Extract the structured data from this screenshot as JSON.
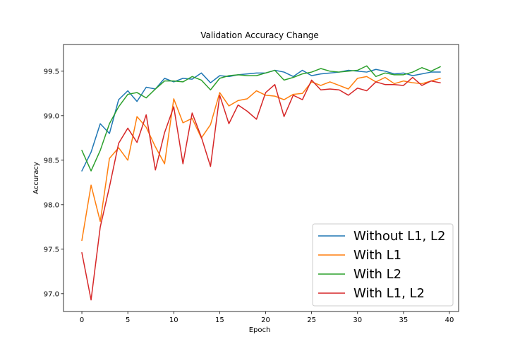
{
  "chart_data": {
    "type": "line",
    "title": "Validation Accuracy Change",
    "xlabel": "Epoch",
    "ylabel": "Accuracy",
    "xlim": [
      -2,
      41
    ],
    "ylim": [
      96.8,
      99.8
    ],
    "xticks": [
      0,
      5,
      10,
      15,
      20,
      25,
      30,
      35,
      40
    ],
    "xtick_labels": [
      "0",
      "5",
      "10",
      "15",
      "20",
      "25",
      "30",
      "35",
      "40"
    ],
    "yticks": [
      97.0,
      97.5,
      98.0,
      98.5,
      99.0,
      99.5
    ],
    "ytick_labels": [
      "97.0",
      "97.5",
      "98.0",
      "98.5",
      "99.0",
      "99.5"
    ],
    "grid": false,
    "legend_position": "bottom-right",
    "x": [
      0,
      1,
      2,
      3,
      4,
      5,
      6,
      7,
      8,
      9,
      10,
      11,
      12,
      13,
      14,
      15,
      16,
      17,
      18,
      19,
      20,
      21,
      22,
      23,
      24,
      25,
      26,
      27,
      28,
      29,
      30,
      31,
      32,
      33,
      34,
      35,
      36,
      37,
      38,
      39
    ],
    "series": [
      {
        "name": "Without L1, L2",
        "color": "#1f77b4",
        "values": [
          98.38,
          98.59,
          98.91,
          98.8,
          99.18,
          99.28,
          99.16,
          99.32,
          99.3,
          99.42,
          99.38,
          99.42,
          99.41,
          99.48,
          99.37,
          99.45,
          99.44,
          99.46,
          99.47,
          99.48,
          99.48,
          99.51,
          99.49,
          99.44,
          99.51,
          99.45,
          99.47,
          99.48,
          99.49,
          99.51,
          99.5,
          99.49,
          99.52,
          99.5,
          99.47,
          99.48,
          99.45,
          99.47,
          99.49,
          99.49
        ]
      },
      {
        "name": "With L1",
        "color": "#ff7f0e",
        "values": [
          97.6,
          98.22,
          97.81,
          98.52,
          98.64,
          98.5,
          98.99,
          98.87,
          98.65,
          98.46,
          99.19,
          98.92,
          98.97,
          98.75,
          98.9,
          99.26,
          99.11,
          99.17,
          99.19,
          99.28,
          99.23,
          99.22,
          99.18,
          99.24,
          99.25,
          99.38,
          99.34,
          99.38,
          99.34,
          99.3,
          99.42,
          99.44,
          99.38,
          99.43,
          99.36,
          99.39,
          99.37,
          99.36,
          99.39,
          99.42
        ]
      },
      {
        "name": "With L2",
        "color": "#2ca02c",
        "values": [
          98.61,
          98.38,
          98.61,
          98.91,
          99.1,
          99.24,
          99.26,
          99.2,
          99.3,
          99.39,
          99.39,
          99.38,
          99.44,
          99.4,
          99.29,
          99.42,
          99.45,
          99.46,
          99.45,
          99.45,
          99.48,
          99.51,
          99.4,
          99.43,
          99.47,
          99.49,
          99.53,
          99.5,
          99.49,
          99.5,
          99.51,
          99.56,
          99.44,
          99.48,
          99.46,
          99.46,
          99.49,
          99.54,
          99.5,
          99.55
        ]
      },
      {
        "name": "With L1, L2",
        "color": "#d62728",
        "values": [
          97.46,
          96.93,
          97.75,
          98.2,
          98.69,
          98.86,
          98.7,
          99.01,
          98.39,
          98.81,
          99.1,
          98.46,
          99.03,
          98.76,
          98.43,
          99.23,
          98.91,
          99.12,
          99.05,
          98.96,
          99.26,
          99.35,
          98.99,
          99.23,
          99.18,
          99.4,
          99.29,
          99.3,
          99.29,
          99.23,
          99.31,
          99.28,
          99.38,
          99.35,
          99.35,
          99.34,
          99.43,
          99.34,
          99.39,
          99.37
        ]
      }
    ]
  }
}
